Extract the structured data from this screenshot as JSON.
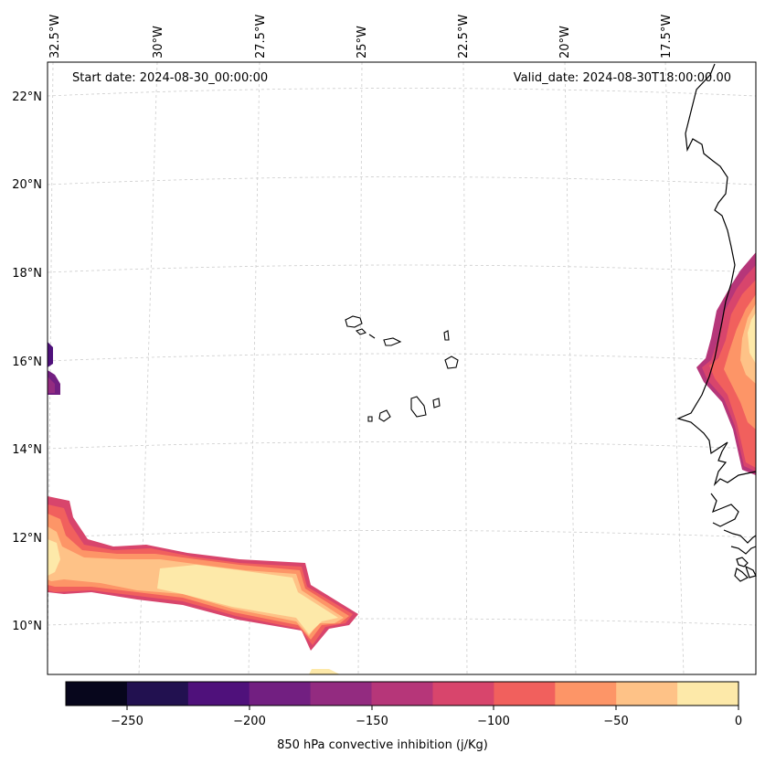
{
  "header": {
    "start_date": "Start date: 2024-08-30_00:00:00",
    "valid_date": "Valid_date: 2024-08-30T18:00:00.00"
  },
  "axes": {
    "lon_labels": [
      "32.5°W",
      "30°W",
      "27.5°W",
      "25°W",
      "22.5°W",
      "20°W",
      "17.5°W"
    ],
    "lat_labels": [
      "22°N",
      "20°N",
      "18°N",
      "16°N",
      "14°N",
      "12°N",
      "10°N"
    ]
  },
  "colorbar": {
    "label": "850 hPa convective inhibition (j/Kg)",
    "tick_labels": [
      "−250",
      "−200",
      "−150",
      "−100",
      "−50",
      "0"
    ],
    "min": -275,
    "max": 0,
    "levels": [
      -275,
      -250,
      -225,
      -200,
      -175,
      -150,
      -125,
      -100,
      -75,
      -50,
      -25,
      0
    ],
    "colors": [
      "#07061c",
      "#221150",
      "#4f117b",
      "#721f81",
      "#932b80",
      "#b63679",
      "#d8456c",
      "#f1605d",
      "#fd9567",
      "#fec287",
      "#fde9a9"
    ]
  },
  "colors": {
    "coastline": "#000000",
    "grid": "#cccccc"
  }
}
